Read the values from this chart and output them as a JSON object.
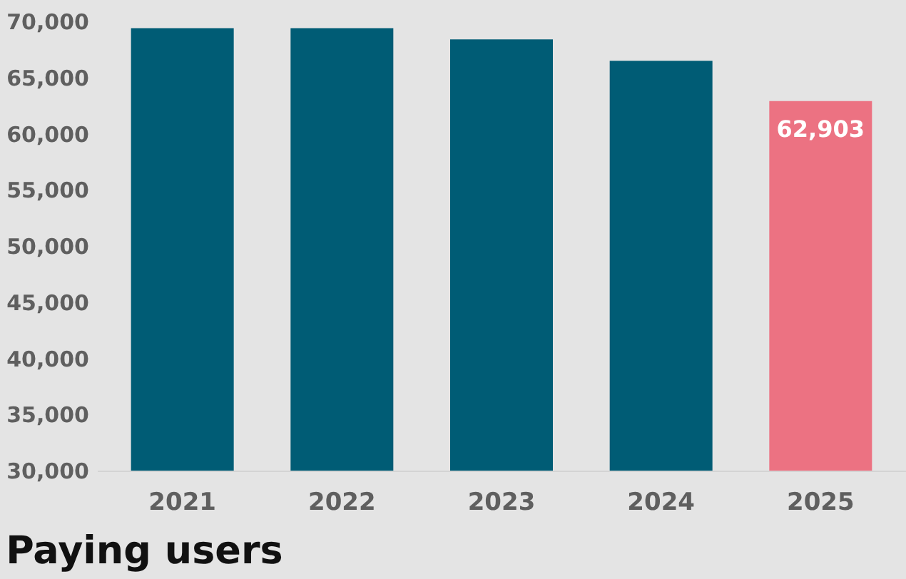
{
  "chart_data": {
    "type": "bar",
    "title": "Paying users",
    "categories": [
      "2021",
      "2022",
      "2023",
      "2024",
      "2025"
    ],
    "values": [
      69400,
      69400,
      68400,
      66500,
      62903
    ],
    "colors": [
      "#005c75",
      "#005c75",
      "#005c75",
      "#005c75",
      "#ec7282"
    ],
    "value_labels": [
      null,
      null,
      null,
      null,
      "62,903"
    ],
    "ylim": [
      30000,
      70000
    ],
    "yticks": [
      {
        "value": 30000,
        "label": "30,000"
      },
      {
        "value": 35000,
        "label": "35,000"
      },
      {
        "value": 40000,
        "label": "40,000"
      },
      {
        "value": 45000,
        "label": "45,000"
      },
      {
        "value": 50000,
        "label": "50,000"
      },
      {
        "value": 55000,
        "label": "55,000"
      },
      {
        "value": 60000,
        "label": "60,000"
      },
      {
        "value": 65000,
        "label": "65,000"
      },
      {
        "value": 70000,
        "label": "70,000"
      }
    ],
    "grid": false
  }
}
